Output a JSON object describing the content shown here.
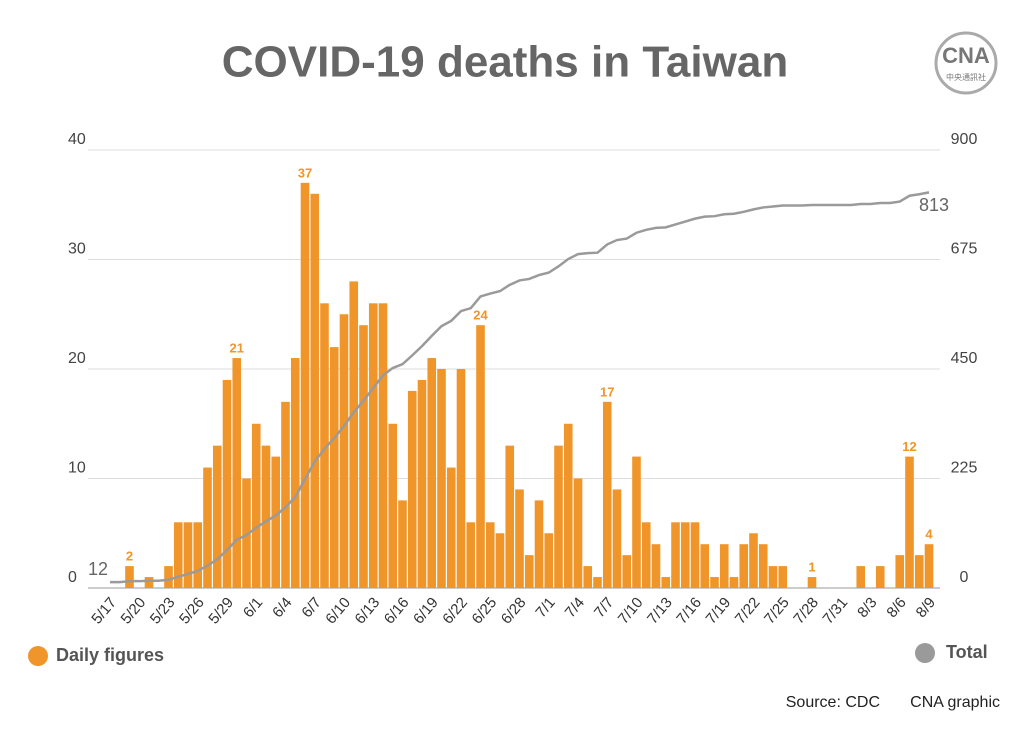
{
  "chart_data": {
    "type": "bar",
    "title": "COVID-19 deaths in Taiwan",
    "categories": [
      "5/17",
      null,
      null,
      "5/20",
      null,
      null,
      "5/23",
      null,
      null,
      "5/26",
      null,
      null,
      "5/29",
      null,
      null,
      "6/1",
      null,
      null,
      "6/4",
      null,
      null,
      "6/7",
      null,
      null,
      "6/10",
      null,
      null,
      "6/13",
      null,
      null,
      "6/16",
      null,
      null,
      "6/19",
      null,
      null,
      "6/22",
      null,
      null,
      "6/25",
      null,
      null,
      "6/28",
      null,
      null,
      "7/1",
      null,
      null,
      "7/4",
      null,
      null,
      "7/7",
      null,
      null,
      "7/10",
      null,
      null,
      "7/13",
      null,
      null,
      "7/16",
      null,
      null,
      "7/19",
      null,
      null,
      "7/22",
      null,
      null,
      "7/25",
      null,
      null,
      "7/28",
      null,
      null,
      "7/31",
      null,
      null,
      "8/3",
      null,
      null,
      "8/6",
      null,
      null,
      "8/9"
    ],
    "series": [
      {
        "name": "Daily figures",
        "type": "bar",
        "color": "#f0952a",
        "values": [
          0,
          0,
          2,
          0,
          1,
          0,
          2,
          6,
          6,
          6,
          11,
          13,
          19,
          21,
          10,
          15,
          13,
          12,
          17,
          21,
          37,
          36,
          26,
          22,
          25,
          28,
          24,
          26,
          26,
          15,
          8,
          18,
          19,
          21,
          20,
          11,
          20,
          6,
          24,
          6,
          5,
          13,
          9,
          3,
          8,
          5,
          13,
          15,
          10,
          2,
          1,
          17,
          9,
          3,
          12,
          6,
          4,
          1,
          6,
          6,
          6,
          4,
          1,
          4,
          1,
          4,
          5,
          4,
          2,
          2,
          0,
          0,
          1,
          0,
          0,
          0,
          0,
          2,
          0,
          2,
          0,
          3,
          12,
          3,
          4
        ],
        "value_labels": [
          null,
          null,
          "2",
          null,
          null,
          null,
          null,
          null,
          null,
          null,
          null,
          null,
          null,
          "21",
          null,
          null,
          null,
          null,
          null,
          null,
          "37",
          null,
          null,
          null,
          null,
          null,
          null,
          null,
          null,
          null,
          null,
          null,
          null,
          null,
          null,
          null,
          null,
          null,
          "24",
          null,
          null,
          null,
          null,
          null,
          null,
          null,
          null,
          null,
          null,
          null,
          null,
          "17",
          null,
          null,
          null,
          null,
          null,
          null,
          null,
          null,
          null,
          null,
          null,
          null,
          null,
          null,
          null,
          null,
          null,
          null,
          null,
          null,
          "1",
          null,
          null,
          null,
          null,
          null,
          null,
          null,
          null,
          null,
          "12",
          null,
          "4"
        ]
      },
      {
        "name": "Total",
        "type": "line",
        "axis": "y2",
        "color": "#9a9a9a",
        "values": [
          12,
          12,
          14,
          14,
          15,
          15,
          17,
          23,
          29,
          35,
          46,
          59,
          78,
          99,
          109,
          124,
          137,
          149,
          166,
          187,
          224,
          260,
          286,
          308,
          333,
          361,
          385,
          411,
          437,
          452,
          460,
          478,
          497,
          518,
          538,
          549,
          569,
          575,
          599,
          605,
          610,
          623,
          632,
          635,
          643,
          648,
          661,
          676,
          686,
          688,
          689,
          706,
          715,
          718,
          730,
          736,
          740,
          741,
          747,
          753,
          759,
          763,
          764,
          768,
          769,
          773,
          778,
          782,
          784,
          786,
          786,
          786,
          787,
          787,
          787,
          787,
          787,
          789,
          789,
          791,
          791,
          794,
          806,
          809,
          813
        ],
        "value_labels": [
          "12",
          null,
          null,
          null,
          null,
          null,
          null,
          null,
          null,
          null,
          null,
          null,
          null,
          null,
          null,
          null,
          null,
          null,
          null,
          null,
          null,
          null,
          null,
          null,
          null,
          null,
          null,
          null,
          null,
          null,
          null,
          null,
          null,
          null,
          null,
          null,
          null,
          null,
          null,
          null,
          null,
          null,
          null,
          null,
          null,
          null,
          null,
          null,
          null,
          null,
          null,
          null,
          null,
          null,
          null,
          null,
          null,
          null,
          null,
          null,
          null,
          null,
          null,
          null,
          null,
          null,
          null,
          null,
          null,
          null,
          null,
          null,
          null,
          null,
          null,
          null,
          null,
          null,
          null,
          null,
          null,
          null,
          null,
          null,
          "813"
        ]
      }
    ],
    "ylim": [
      0,
      40
    ],
    "yticks": [
      0,
      10,
      20,
      30,
      40
    ],
    "y2lim": [
      0,
      900
    ],
    "y2ticks": [
      0,
      225,
      450,
      675,
      900
    ],
    "grid": true,
    "source": "Source: CDC",
    "credit": "CNA graphic"
  },
  "logo": {
    "text": "CNA",
    "subtext": "中央通訊社"
  }
}
